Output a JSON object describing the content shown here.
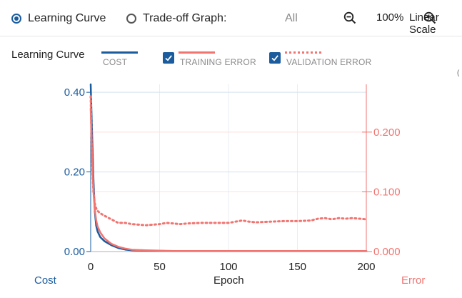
{
  "toolbar": {
    "learning_curve_label": "Learning Curve",
    "tradeoff_label": "Trade-off Graph:",
    "tradeoff_value": "All",
    "zoom_percent": "100%",
    "scale_label": "Linear Scale"
  },
  "legend": {
    "title": "Learning Curve",
    "cost_label": "COST",
    "training_label": "TRAINING ERROR",
    "validation_label": "VALIDATION ERROR"
  },
  "colors": {
    "cost": "#1a5c9e",
    "error": "#f07470",
    "checkbox": "#1a5c9e"
  },
  "icons": [
    "zoom-out-icon",
    "zoom-in-icon",
    "checkbox-checked-icon"
  ],
  "chart_data": {
    "type": "line",
    "xlabel": "Epoch",
    "left_axis_label": "Cost",
    "right_axis_label": "Error",
    "xlim": [
      0,
      200
    ],
    "ylim_left": [
      0,
      0.42
    ],
    "ylim_right": [
      0,
      0.28
    ],
    "x_ticks": [
      "0",
      "50",
      "100",
      "150",
      "200"
    ],
    "y_left_ticks": [
      "0.00",
      "0.20",
      "0.40"
    ],
    "y_right_ticks": [
      "0.000",
      "0.100",
      "0.200"
    ],
    "series": [
      {
        "name": "COST",
        "axis": "left",
        "x": [
          0,
          1,
          2,
          3,
          4,
          5,
          7,
          10,
          15,
          20,
          25,
          30,
          40,
          60,
          100,
          150,
          200
        ],
        "y": [
          0.42,
          0.3,
          0.18,
          0.1,
          0.065,
          0.05,
          0.036,
          0.026,
          0.016,
          0.009,
          0.005,
          0.003,
          0.002,
          0.001,
          0.001,
          0.001,
          0.001
        ]
      },
      {
        "name": "TRAINING ERROR",
        "axis": "right",
        "x": [
          0,
          1,
          2,
          3,
          4,
          5,
          7,
          10,
          15,
          20,
          25,
          30,
          40,
          60,
          100,
          150,
          200
        ],
        "y": [
          0.24,
          0.16,
          0.1,
          0.07,
          0.052,
          0.042,
          0.032,
          0.022,
          0.013,
          0.008,
          0.005,
          0.003,
          0.002,
          0.001,
          0.001,
          0.001,
          0.001
        ]
      },
      {
        "name": "VALIDATION ERROR",
        "axis": "right",
        "x": [
          0,
          1,
          2,
          3,
          4,
          5,
          7,
          10,
          15,
          20,
          25,
          30,
          35,
          40,
          45,
          50,
          55,
          60,
          65,
          70,
          80,
          90,
          100,
          105,
          110,
          115,
          120,
          130,
          140,
          150,
          160,
          165,
          170,
          175,
          180,
          185,
          190,
          195,
          200
        ],
        "y": [
          0.26,
          0.15,
          0.1,
          0.08,
          0.072,
          0.068,
          0.064,
          0.06,
          0.054,
          0.048,
          0.048,
          0.046,
          0.045,
          0.044,
          0.045,
          0.046,
          0.048,
          0.047,
          0.046,
          0.047,
          0.048,
          0.048,
          0.048,
          0.05,
          0.052,
          0.05,
          0.049,
          0.05,
          0.051,
          0.051,
          0.052,
          0.055,
          0.056,
          0.054,
          0.056,
          0.055,
          0.056,
          0.055,
          0.054
        ]
      }
    ]
  }
}
